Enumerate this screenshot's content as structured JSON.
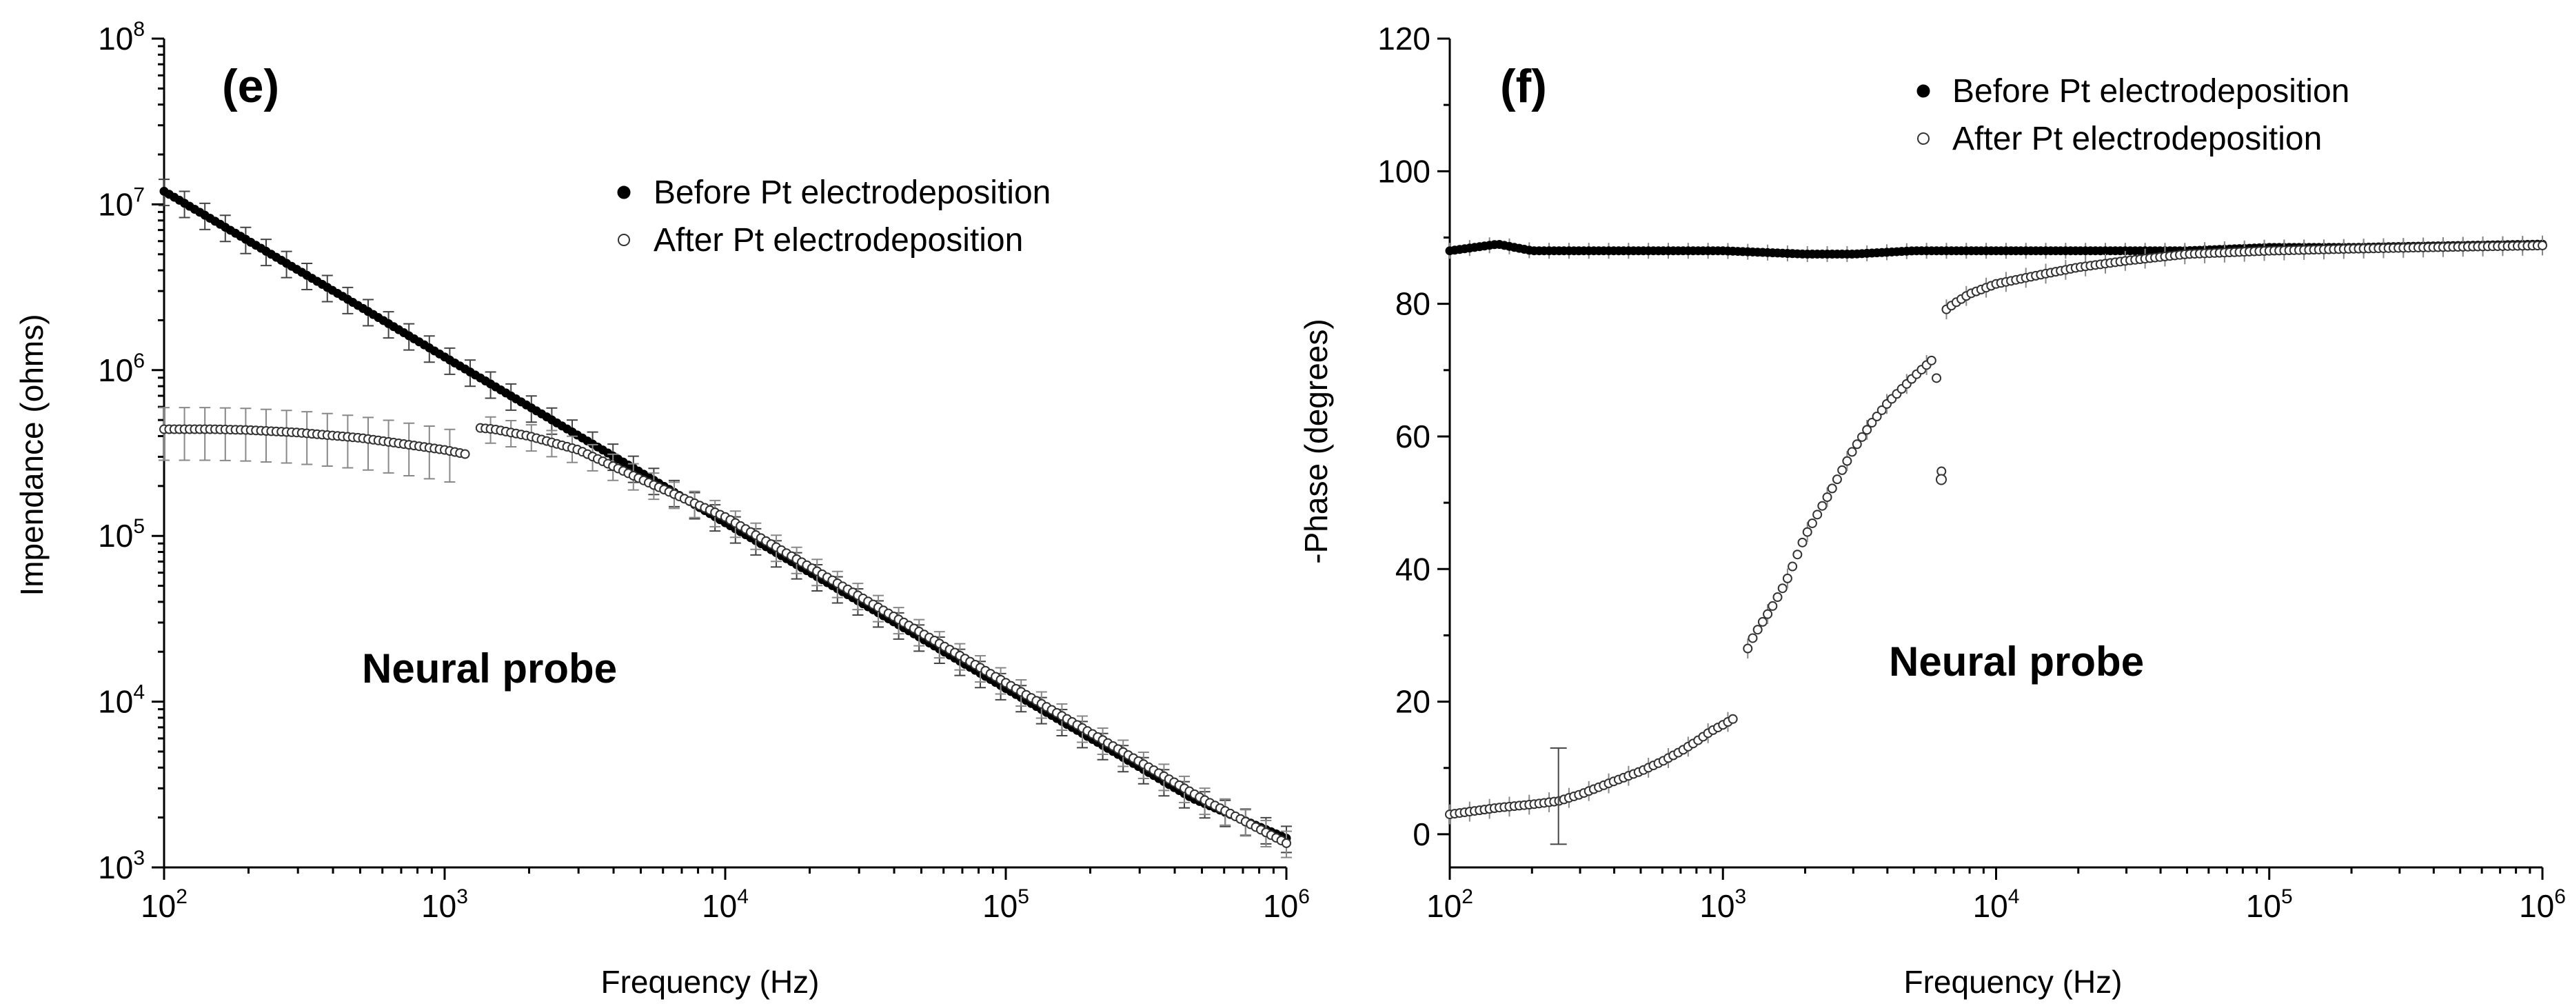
{
  "chart_data": [
    {
      "type": "scatter",
      "panel": "(e)",
      "annotation": "Neural probe",
      "xlabel": "Frequency (Hz)",
      "ylabel": "Impendance (ohms)",
      "xscale": "log",
      "yscale": "log",
      "xlim": [
        100,
        1000000
      ],
      "ylim": [
        1000,
        100000000
      ],
      "x_ticks": [
        {
          "base": "10",
          "exp": "2"
        },
        {
          "base": "10",
          "exp": "3"
        },
        {
          "base": "10",
          "exp": "4"
        },
        {
          "base": "10",
          "exp": "5"
        },
        {
          "base": "10",
          "exp": "6"
        }
      ],
      "y_ticks": [
        {
          "base": "10",
          "exp": "3"
        },
        {
          "base": "10",
          "exp": "4"
        },
        {
          "base": "10",
          "exp": "5"
        },
        {
          "base": "10",
          "exp": "6"
        },
        {
          "base": "10",
          "exp": "7"
        },
        {
          "base": "10",
          "exp": "8"
        }
      ],
      "legend_position": "top-right",
      "series": [
        {
          "name": "Before Pt electrodeposition",
          "marker": "filled-circle",
          "x": [
            100,
            215,
            464,
            1000,
            2154,
            4642,
            10000,
            21544,
            46416,
            100000,
            215443,
            464159,
            1000000
          ],
          "y": [
            12000000,
            5600000,
            2600000,
            1200000,
            560000,
            260000,
            120000,
            56000,
            26000,
            12000,
            5600,
            2600,
            1500
          ]
        },
        {
          "name": "After Pt electrodeposition",
          "marker": "open-circle",
          "x": [
            100,
            150,
            200,
            300,
            500,
            700,
            1000,
            1200,
            1300,
            1500,
            2000,
            3000,
            5000,
            10000,
            20000,
            50000,
            100000,
            200000,
            500000,
            1000000
          ],
          "y": [
            440000,
            440000,
            435000,
            420000,
            390000,
            360000,
            330000,
            310000,
            450000,
            440000,
            400000,
            330000,
            220000,
            130000,
            65000,
            26000,
            13000,
            6500,
            2600,
            1400
          ]
        }
      ]
    },
    {
      "type": "scatter",
      "panel": "(f)",
      "annotation": "Neural probe",
      "xlabel": "Frequency (Hz)",
      "ylabel": "-Phase (degrees)",
      "xscale": "log",
      "yscale": "linear",
      "xlim": [
        100,
        1000000
      ],
      "ylim": [
        -5,
        120
      ],
      "x_ticks": [
        {
          "base": "10",
          "exp": "2"
        },
        {
          "base": "10",
          "exp": "3"
        },
        {
          "base": "10",
          "exp": "4"
        },
        {
          "base": "10",
          "exp": "5"
        },
        {
          "base": "10",
          "exp": "6"
        }
      ],
      "y_ticks": [
        "0",
        "20",
        "40",
        "60",
        "80",
        "100",
        "120"
      ],
      "legend_position": "top-right",
      "series": [
        {
          "name": "Before Pt electrodeposition",
          "marker": "filled-circle",
          "x": [
            100,
            150,
            200,
            300,
            500,
            1000,
            2000,
            3000,
            5000,
            10000,
            20000,
            50000,
            100000,
            200000,
            500000,
            1000000
          ],
          "y": [
            88,
            89,
            88,
            88,
            88,
            88,
            87.5,
            87.5,
            88,
            88,
            88,
            88,
            88.5,
            88.5,
            88.8,
            89
          ]
        },
        {
          "name": "After Pt electrodeposition",
          "marker": "open-circle",
          "x": [
            100,
            150,
            200,
            250,
            300,
            400,
            500,
            600,
            700,
            800,
            900,
            1000,
            1100,
            1200,
            1300,
            1500,
            1700,
            2000,
            2500,
            3000,
            3500,
            4000,
            5000,
            6000,
            6300,
            6500,
            7000,
            8000,
            10000,
            15000,
            20000,
            30000,
            50000,
            100000,
            200000,
            500000,
            1000000
          ],
          "y": [
            3,
            4,
            4.5,
            5,
            6,
            8,
            9.5,
            11,
            12.5,
            14,
            15.5,
            16.5,
            17.5,
            27,
            30,
            34,
            38,
            45,
            52,
            58,
            62,
            65,
            69,
            72,
            53.5,
            79,
            80,
            81.5,
            83,
            84.5,
            85.5,
            86.5,
            87.5,
            88,
            88.3,
            88.6,
            88.8
          ]
        }
      ]
    }
  ]
}
